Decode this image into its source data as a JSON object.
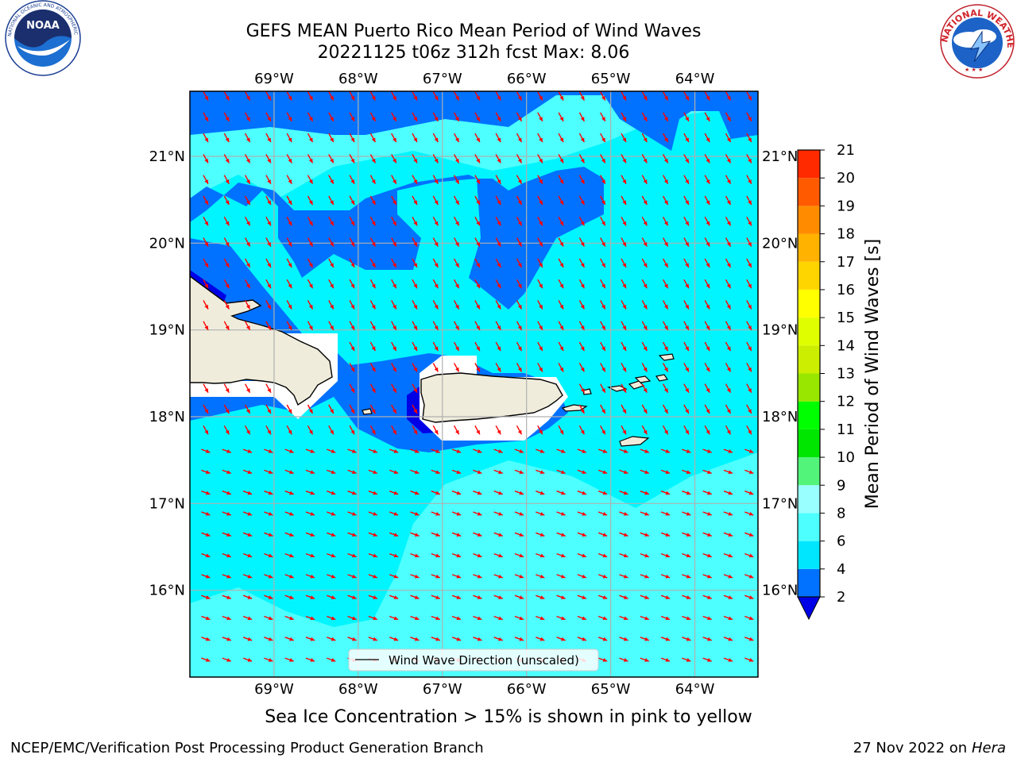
{
  "header": {
    "title_line1": "GEFS MEAN Puerto Rico Mean Period of Wind Waves",
    "title_line2": "20221125 t06z 312h fcst   Max: 8.06"
  },
  "logos": {
    "left": "noaa-logo",
    "left_text": "NOAA",
    "left_ring_text": "NATIONAL OCEANIC AND ATMOSPHERIC ADMINISTRATION · U.S. DEPARTMENT OF COMMERCE",
    "right": "nws-logo",
    "right_ring_text": "NATIONAL WEATHER SERVICE"
  },
  "map": {
    "lon_labels": [
      "69°W",
      "68°W",
      "67°W",
      "66°W",
      "65°W",
      "64°W"
    ],
    "lat_labels": [
      "21°N",
      "20°N",
      "19°N",
      "18°N",
      "17°N",
      "16°N"
    ],
    "lon_values": [
      -69,
      -68,
      -67,
      -66,
      -65,
      -64
    ],
    "lat_values": [
      21,
      20,
      19,
      18,
      17,
      16
    ],
    "lon_range": [
      -70,
      -63.25
    ],
    "lat_range": [
      15,
      21.75
    ],
    "grid": true,
    "legend_label": "Wind Wave Direction (unscaled)",
    "legend_placement": "bottom-center",
    "vector_color": "#ff0000",
    "land_color": "#efecdc",
    "coast_color": "#000000"
  },
  "colorbar": {
    "label": "Mean Period of Wind Waves [s]",
    "tick_labels": [
      "2",
      "4",
      "6",
      "8",
      "9",
      "10",
      "11",
      "12",
      "13",
      "14",
      "15",
      "16",
      "17",
      "18",
      "19",
      "20",
      "21"
    ],
    "colors": [
      "#0000e6",
      "#0072ff",
      "#00e6ff",
      "#4dffff",
      "#99ffff",
      "#52f57a",
      "#00e600",
      "#00ff00",
      "#99e600",
      "#ccee00",
      "#dfff00",
      "#ffff00",
      "#ffd500",
      "#ffb300",
      "#ff8c00",
      "#ff5a00",
      "#ff2a00",
      "#ff0000"
    ]
  },
  "chart_data": {
    "type": "heatmap",
    "title": "GEFS MEAN Puerto Rico Mean Period of Wind Waves",
    "subtitle": "20221125 t06z 312h fcst   Max: 8.06",
    "xlabel": "",
    "ylabel": "",
    "xlim": [
      -70,
      -63.25
    ],
    "ylim": [
      15,
      21.75
    ],
    "colorbar_label": "Mean Period of Wind Waves [s]",
    "levels": [
      2,
      4,
      6,
      8,
      9,
      10,
      11,
      12,
      13,
      14,
      15,
      16,
      17,
      18,
      19,
      20,
      21
    ],
    "max_value": 8.06,
    "legend": [
      "Wind Wave Direction (unscaled)"
    ]
  },
  "notes": {
    "sea_ice": "Sea Ice Concentration > 15% is shown in pink to yellow"
  },
  "footer": {
    "left": "NCEP/EMC/Verification Post Processing Product Generation Branch",
    "date": "27 Nov 2022 on",
    "host": "Hera"
  }
}
